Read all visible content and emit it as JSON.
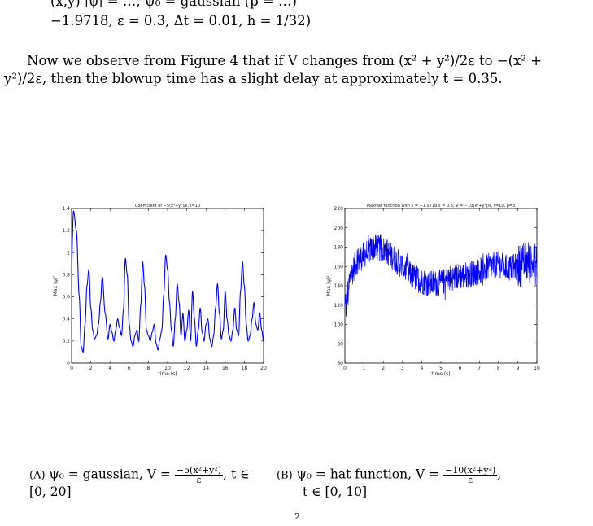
{
  "top_text": {
    "line1_cut": "(x,y) ∣ψ∣ = …, ψ₀ = gaussian (p = …)",
    "line2": "−1.9718, ε = 0.3, Δt = 0.01, h = 1/32)"
  },
  "paragraph": {
    "line1": "Now we observe from Figure 4 that if V changes from (x² + y²)/2ε to −(x² +",
    "line2": "y²)/2ε, then the blowup time has a slight delay at approximately t = 0.35."
  },
  "captions": {
    "a_label": "(A)",
    "a_text": "ψ₀ = gaussian, V = ",
    "a_num": "−5(x²+y²)",
    "a_den": "ε",
    "a_tail": ", t ∈",
    "a_line2": "[0, 20]",
    "b_label": "(B)",
    "b_text": "ψ₀ = hat function, V = ",
    "b_num": "−10(x²+y²)",
    "b_den": "ε",
    "b_tail": ",",
    "b_line2": "t ∈ [0, 10]"
  },
  "footer_fragment": "2",
  "chart_data": [
    {
      "type": "line",
      "title": "Coefficient of −5(x²+y²)/ε, t=10",
      "xlabel": "time (s)",
      "ylabel": "Max |ψ|²",
      "xlim": [
        0,
        20
      ],
      "ylim": [
        0,
        1.4
      ],
      "xticks": [
        "0",
        "2",
        "4",
        "6",
        "8",
        "10",
        "12",
        "14",
        "16",
        "18",
        "20"
      ],
      "yticks": [
        "0",
        "0.2",
        "0.4",
        "0.6",
        "0.8",
        "1",
        "1.2",
        "1.4"
      ],
      "color": "#0000ff",
      "x": [
        0,
        0.2,
        0.5,
        0.8,
        1.0,
        1.2,
        1.4,
        1.6,
        1.8,
        2.0,
        2.2,
        2.4,
        2.6,
        2.8,
        3.0,
        3.2,
        3.5,
        3.8,
        4.0,
        4.2,
        4.4,
        4.6,
        4.8,
        5.0,
        5.2,
        5.4,
        5.6,
        5.8,
        6.0,
        6.2,
        6.4,
        6.6,
        6.8,
        7.0,
        7.2,
        7.4,
        7.6,
        7.8,
        8.0,
        8.2,
        8.4,
        8.6,
        8.8,
        9.0,
        9.2,
        9.4,
        9.6,
        9.8,
        10.0,
        10.2,
        10.4,
        10.6,
        10.8,
        11.0,
        11.2,
        11.4,
        11.6,
        11.8,
        12.0,
        12.2,
        12.4,
        12.6,
        12.8,
        13.0,
        13.2,
        13.4,
        13.6,
        13.8,
        14.0,
        14.2,
        14.4,
        14.6,
        14.8,
        15.0,
        15.2,
        15.4,
        15.6,
        15.8,
        16.0,
        16.2,
        16.4,
        16.6,
        16.8,
        17.0,
        17.2,
        17.4,
        17.6,
        17.8,
        18.0,
        18.2,
        18.4,
        18.6,
        18.8,
        19.0,
        19.2,
        19.4,
        19.6,
        19.8,
        20.0
      ],
      "y": [
        0.95,
        1.38,
        1.2,
        0.6,
        0.15,
        0.1,
        0.35,
        0.7,
        0.85,
        0.5,
        0.3,
        0.22,
        0.25,
        0.35,
        0.55,
        0.78,
        0.45,
        0.22,
        0.35,
        0.28,
        0.2,
        0.3,
        0.4,
        0.32,
        0.25,
        0.48,
        0.95,
        0.8,
        0.35,
        0.2,
        0.15,
        0.25,
        0.3,
        0.2,
        0.52,
        0.92,
        0.7,
        0.3,
        0.25,
        0.2,
        0.28,
        0.35,
        0.18,
        0.12,
        0.22,
        0.3,
        0.62,
        0.98,
        0.85,
        0.55,
        0.3,
        0.15,
        0.4,
        0.72,
        0.55,
        0.25,
        0.45,
        0.2,
        0.3,
        0.48,
        0.2,
        0.65,
        0.4,
        0.15,
        0.3,
        0.5,
        0.28,
        0.2,
        0.35,
        0.4,
        0.22,
        0.15,
        0.25,
        0.5,
        0.72,
        0.45,
        0.22,
        0.3,
        0.65,
        0.4,
        0.25,
        0.2,
        0.3,
        0.5,
        0.3,
        0.25,
        0.65,
        0.92,
        0.7,
        0.35,
        0.2,
        0.25,
        0.4,
        0.55,
        0.35,
        0.3,
        0.45,
        0.3,
        0.2
      ]
    },
    {
      "type": "line",
      "title": "MaxHat function with s = −1.9718 ε = 0.3, V = −10(x²+y²)/ε, t=10, p=3",
      "xlabel": "time (s)",
      "ylabel": "Max |ψ|²",
      "xlim": [
        0,
        10
      ],
      "ylim": [
        60,
        220
      ],
      "xticks": [
        "0",
        "1",
        "2",
        "3",
        "4",
        "5",
        "6",
        "7",
        "8",
        "9",
        "10"
      ],
      "yticks": [
        "60",
        "80",
        "100",
        "120",
        "140",
        "160",
        "180",
        "200",
        "220"
      ],
      "color": "#0000ff",
      "envelope_x": [
        0,
        0.3,
        0.6,
        1.0,
        1.5,
        2.0,
        2.5,
        3.0,
        3.5,
        4.0,
        4.5,
        5.0,
        5.5,
        6.0,
        6.5,
        7.0,
        7.5,
        8.0,
        8.5,
        9.0,
        9.5,
        10.0
      ],
      "envelope_y": [
        112,
        150,
        165,
        172,
        180,
        178,
        170,
        160,
        150,
        145,
        142,
        143,
        148,
        150,
        152,
        155,
        160,
        162,
        158,
        160,
        165,
        162
      ],
      "noise_amplitude": 14
    }
  ]
}
